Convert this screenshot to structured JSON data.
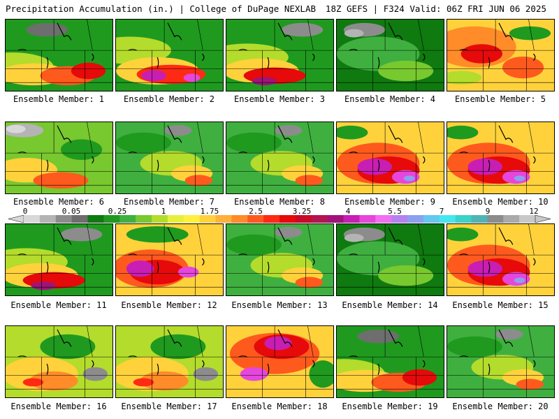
{
  "header": {
    "title": "Precipitation Accumulation (in.) | College of DuPage NEXLAB",
    "run_info": "18Z GEFS | F324 Valid: 06Z FRI JUN 06 2025"
  },
  "colorbar": {
    "tick_labels": [
      "0",
      "0.05",
      "0.25",
      "1",
      "1.75",
      "2.5",
      "3.25",
      "4",
      "5.5",
      "7",
      "9",
      "12"
    ],
    "colors": [
      "#d8d8d8",
      "#b4b4b4",
      "#8c8c8c",
      "#6e6e6e",
      "#0f7a0f",
      "#1f9a1f",
      "#3fb03f",
      "#78c82f",
      "#b4dc2c",
      "#e6f03c",
      "#fff03c",
      "#ffd23c",
      "#ffb03c",
      "#ff8c28",
      "#ff5a1e",
      "#ff2a14",
      "#e60a0a",
      "#c80a28",
      "#b41450",
      "#a0147a",
      "#c81eb4",
      "#e646dc",
      "#f06ef0",
      "#b482f0",
      "#8ca0f0",
      "#64c8f0",
      "#46e6f0",
      "#3cd2c8",
      "#50b4b4",
      "#8c8c8c",
      "#aaaaaa",
      "#c8c8c8"
    ]
  },
  "members": [
    {
      "label": "Ensemble Member: 1",
      "style": "south_wet"
    },
    {
      "label": "Ensemble Member: 2",
      "style": "south_magenta"
    },
    {
      "label": "Ensemble Member: 3",
      "style": "south_red"
    },
    {
      "label": "Ensemble Member: 4",
      "style": "dry_green"
    },
    {
      "label": "Ensemble Member: 5",
      "style": "all_red"
    },
    {
      "label": "Ensemble Member: 6",
      "style": "grey_north"
    },
    {
      "label": "Ensemble Member: 7",
      "style": "green_mixed"
    },
    {
      "label": "Ensemble Member: 8",
      "style": "green_mixed"
    },
    {
      "label": "Ensemble Member: 9",
      "style": "magenta_heavy"
    },
    {
      "label": "Ensemble Member: 10",
      "style": "magenta_heavy"
    },
    {
      "label": "Ensemble Member: 11",
      "style": "south_red"
    },
    {
      "label": "Ensemble Member: 12",
      "style": "magenta_west"
    },
    {
      "label": "Ensemble Member: 13",
      "style": "green_mixed"
    },
    {
      "label": "Ensemble Member: 14",
      "style": "dry_green"
    },
    {
      "label": "Ensemble Member: 15",
      "style": "magenta_heavy"
    },
    {
      "label": "Ensemble Member: 16",
      "style": "yellow_mixed"
    },
    {
      "label": "Ensemble Member: 17",
      "style": "yellow_mixed"
    },
    {
      "label": "Ensemble Member: 18",
      "style": "magenta_north"
    },
    {
      "label": "Ensemble Member: 19",
      "style": "south_wet"
    },
    {
      "label": "Ensemble Member: 20",
      "style": "green_mixed"
    }
  ]
}
